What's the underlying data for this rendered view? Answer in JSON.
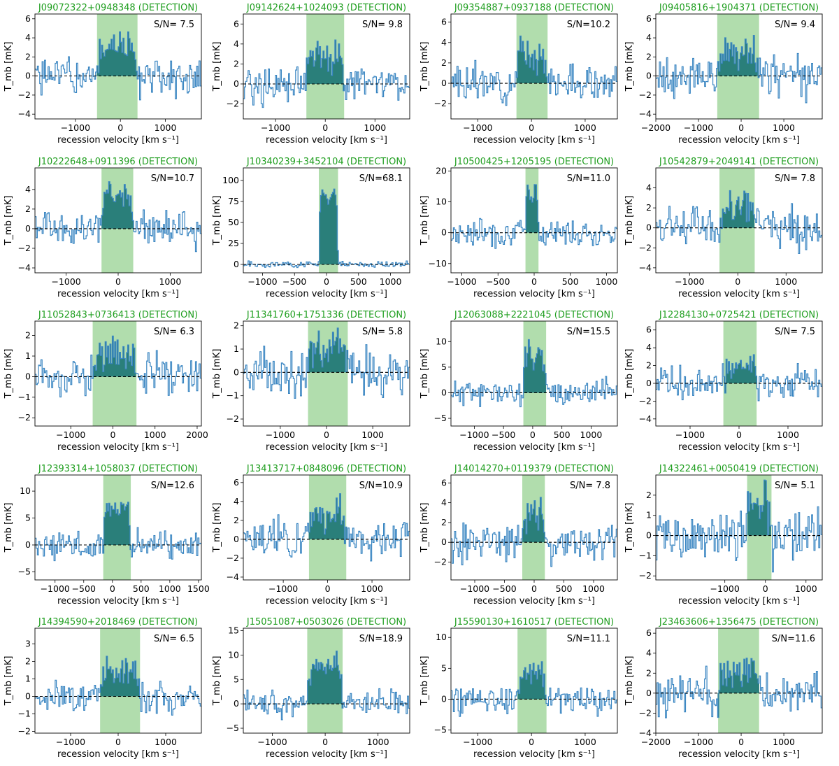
{
  "common": {
    "xlabel": "recession velocity [km s⁻¹]",
    "ylabel": "T_mb [mK]",
    "colors": {
      "title": "#1f9e1f",
      "spectrum": "#3a86c2",
      "band": "#a8d9a4",
      "filled": "#2a7f7a"
    }
  },
  "chart_data": [
    {
      "type": "line",
      "title": "J09072322+0948348 (DETECTION)",
      "sn": "S/N= 7.5",
      "xlim": [
        -1900,
        1800
      ],
      "ylim": [
        -4.5,
        6.5
      ],
      "xticks": [
        -1000,
        0,
        1000
      ],
      "yticks": [
        -4,
        -2,
        0,
        2,
        4,
        6
      ],
      "band": [
        -520,
        380
      ],
      "peak": 3.5,
      "noise": 1.5,
      "seed": 1
    },
    {
      "type": "line",
      "title": "J09142624+1024093 (DETECTION)",
      "sn": "S/N= 9.8",
      "xlim": [
        -1650,
        1700
      ],
      "ylim": [
        -3.5,
        7.0
      ],
      "xticks": [
        -1000,
        0,
        1000
      ],
      "yticks": [
        -2,
        0,
        2,
        4,
        6
      ],
      "band": [
        -380,
        380
      ],
      "peak": 3.2,
      "noise": 1.3,
      "seed": 2
    },
    {
      "type": "line",
      "title": "J09354887+0937188 (DETECTION)",
      "sn": "S/N=10.2",
      "xlim": [
        -1500,
        1600
      ],
      "ylim": [
        -3.5,
        6.8
      ],
      "xticks": [
        -1000,
        0,
        1000
      ],
      "yticks": [
        -2,
        0,
        2,
        4,
        6
      ],
      "band": [
        -280,
        300
      ],
      "peak": 3.5,
      "noise": 1.2,
      "seed": 3
    },
    {
      "type": "line",
      "title": "J09405816+1904371 (DETECTION)",
      "sn": "S/N= 9.4",
      "xlim": [
        -2000,
        1900
      ],
      "ylim": [
        -4.5,
        6.5
      ],
      "xticks": [
        -2000,
        -1000,
        0,
        1000
      ],
      "yticks": [
        -4,
        -2,
        0,
        2,
        4,
        6
      ],
      "band": [
        -560,
        420
      ],
      "peak": 2.8,
      "noise": 1.5,
      "seed": 4
    },
    {
      "type": "line",
      "title": "J10222648+0911396 (DETECTION)",
      "sn": "S/N=10.7",
      "xlim": [
        -1600,
        1600
      ],
      "ylim": [
        -4.5,
        6.2
      ],
      "xticks": [
        -1000,
        0,
        1000
      ],
      "yticks": [
        -4,
        -2,
        0,
        2,
        4
      ],
      "band": [
        -320,
        290
      ],
      "peak": 3.8,
      "noise": 1.2,
      "seed": 5
    },
    {
      "type": "line",
      "title": "J10340239+3452104 (DETECTION)",
      "sn": "S/N=68.1",
      "xlim": [
        -1300,
        1300
      ],
      "ylim": [
        -10,
        115
      ],
      "xticks": [
        -1000,
        -500,
        0,
        500,
        1000
      ],
      "yticks": [
        0,
        25,
        50,
        75,
        100
      ],
      "band": [
        -120,
        180
      ],
      "peak": 100,
      "noise": 2.5,
      "seed": 6
    },
    {
      "type": "line",
      "title": "J10500425+1205195 (DETECTION)",
      "sn": "S/N=11.0",
      "xlim": [
        -1150,
        1150
      ],
      "ylim": [
        -13,
        21
      ],
      "xticks": [
        -1000,
        -500,
        0,
        500,
        1000
      ],
      "yticks": [
        -10,
        0,
        10,
        20
      ],
      "band": [
        -120,
        60
      ],
      "peak": 16,
      "noise": 3.0,
      "seed": 7
    },
    {
      "type": "line",
      "title": "J10542879+2049141 (DETECTION)",
      "sn": "S/N= 7.8",
      "xlim": [
        -1700,
        1750
      ],
      "ylim": [
        -4.5,
        6.0
      ],
      "xticks": [
        -1000,
        0,
        1000
      ],
      "yticks": [
        -4,
        -2,
        0,
        2,
        4
      ],
      "band": [
        -380,
        350
      ],
      "peak": 2.3,
      "noise": 1.4,
      "seed": 8
    },
    {
      "type": "line",
      "title": "J11052843+0736413 (DETECTION)",
      "sn": "S/N= 6.3",
      "xlim": [
        -1850,
        2100
      ],
      "ylim": [
        -2.4,
        2.7
      ],
      "xticks": [
        -1000,
        0,
        1000,
        2000
      ],
      "yticks": [
        -2,
        -1,
        0,
        1,
        2
      ],
      "band": [
        -480,
        560
      ],
      "peak": 1.3,
      "noise": 0.7,
      "seed": 9
    },
    {
      "type": "line",
      "title": "J11341760+1751336 (DETECTION)",
      "sn": "S/N= 5.8",
      "xlim": [
        -1800,
        1800
      ],
      "ylim": [
        -2.3,
        2.2
      ],
      "xticks": [
        -1000,
        0,
        1000
      ],
      "yticks": [
        -2,
        -1,
        0,
        1,
        2
      ],
      "band": [
        -400,
        460
      ],
      "peak": 1.2,
      "noise": 0.7,
      "seed": 10
    },
    {
      "type": "line",
      "title": "J12063088+2221045 (DETECTION)",
      "sn": "S/N=15.5",
      "xlim": [
        -1400,
        1450
      ],
      "ylim": [
        -6.5,
        14
      ],
      "xticks": [
        -1000,
        -500,
        0,
        500,
        1000
      ],
      "yticks": [
        -5,
        0,
        5,
        10
      ],
      "band": [
        -160,
        230
      ],
      "peak": 9,
      "noise": 1.8,
      "seed": 11
    },
    {
      "type": "line",
      "title": "J12284130+0725421 (DETECTION)",
      "sn": "S/N= 7.5",
      "xlim": [
        -1700,
        1700
      ],
      "ylim": [
        -4.8,
        7.0
      ],
      "xticks": [
        -1000,
        0,
        1000
      ],
      "yticks": [
        -4,
        -2,
        0,
        2,
        4,
        6
      ],
      "band": [
        -320,
        360
      ],
      "peak": 2.5,
      "noise": 1.4,
      "seed": 12
    },
    {
      "type": "line",
      "title": "J12393314+1058037 (DETECTION)",
      "sn": "S/N=12.6",
      "xlim": [
        -1350,
        1550
      ],
      "ylim": [
        -6.5,
        13
      ],
      "xticks": [
        -1000,
        -500,
        0,
        500,
        1000,
        1500
      ],
      "yticks": [
        -5,
        0,
        5,
        10
      ],
      "band": [
        -160,
        320
      ],
      "peak": 8,
      "noise": 1.8,
      "seed": 13
    },
    {
      "type": "line",
      "title": "J13413717+0848096 (DETECTION)",
      "sn": "S/N=10.9",
      "xlim": [
        -1900,
        1850
      ],
      "ylim": [
        -4.3,
        6.8
      ],
      "xticks": [
        -1000,
        0,
        1000
      ],
      "yticks": [
        -4,
        -2,
        0,
        2,
        4,
        6
      ],
      "band": [
        -420,
        420
      ],
      "peak": 3.2,
      "noise": 1.4,
      "seed": 14
    },
    {
      "type": "line",
      "title": "J14014270+0119379 (DETECTION)",
      "sn": "S/N= 7.8",
      "xlim": [
        -1400,
        1400
      ],
      "ylim": [
        -3.8,
        6.8
      ],
      "xticks": [
        -1000,
        -500,
        0,
        500,
        1000
      ],
      "yticks": [
        -2,
        0,
        2,
        4,
        6
      ],
      "band": [
        -200,
        180
      ],
      "peak": 3.5,
      "noise": 1.3,
      "seed": 15
    },
    {
      "type": "line",
      "title": "J14322461+0050419 (DETECTION)",
      "sn": "S/N= 5.1",
      "xlim": [
        -2700,
        1400
      ],
      "ylim": [
        -2.2,
        3.0
      ],
      "xticks": [
        -1000,
        0,
        1000
      ],
      "yticks": [
        -2,
        -1,
        0,
        1,
        2
      ],
      "band": [
        -450,
        150
      ],
      "peak": 1.7,
      "noise": 0.9,
      "seed": 16
    },
    {
      "type": "line",
      "title": "J14394590+2018469 (DETECTION)",
      "sn": "S/N= 6.5",
      "xlim": [
        -1750,
        1750
      ],
      "ylim": [
        -2.1,
        3.9
      ],
      "xticks": [
        -1000,
        0,
        1000
      ],
      "yticks": [
        -2,
        -1,
        0,
        1,
        2,
        3
      ],
      "band": [
        -380,
        460
      ],
      "peak": 1.8,
      "noise": 0.6,
      "seed": 17
    },
    {
      "type": "line",
      "title": "J15051087+0503026 (DETECTION)",
      "sn": "S/N=18.9",
      "xlim": [
        -1550,
        1600
      ],
      "ylim": [
        -6.0,
        15.5
      ],
      "xticks": [
        -1000,
        0,
        1000
      ],
      "yticks": [
        -5,
        0,
        5,
        10,
        15
      ],
      "band": [
        -340,
        330
      ],
      "peak": 9,
      "noise": 1.8,
      "seed": 18
    },
    {
      "type": "line",
      "title": "J15590130+1610517 (DETECTION)",
      "sn": "S/N=11.1",
      "xlim": [
        -1500,
        1600
      ],
      "ylim": [
        -5.5,
        11.5
      ],
      "xticks": [
        -1000,
        0,
        1000
      ],
      "yticks": [
        -5,
        0,
        5,
        10
      ],
      "band": [
        -260,
        280
      ],
      "peak": 5,
      "noise": 1.7,
      "seed": 19
    },
    {
      "type": "line",
      "title": "J23463606+1356475 (DETECTION)",
      "sn": "S/N=11.6",
      "xlim": [
        -2000,
        1900
      ],
      "ylim": [
        -4,
        6.5
      ],
      "xticks": [
        -2000,
        -1000,
        0,
        1000
      ],
      "yticks": [
        -4,
        -2,
        0,
        2,
        4,
        6
      ],
      "band": [
        -540,
        420
      ],
      "peak": 2.6,
      "noise": 1.4,
      "seed": 20
    }
  ]
}
